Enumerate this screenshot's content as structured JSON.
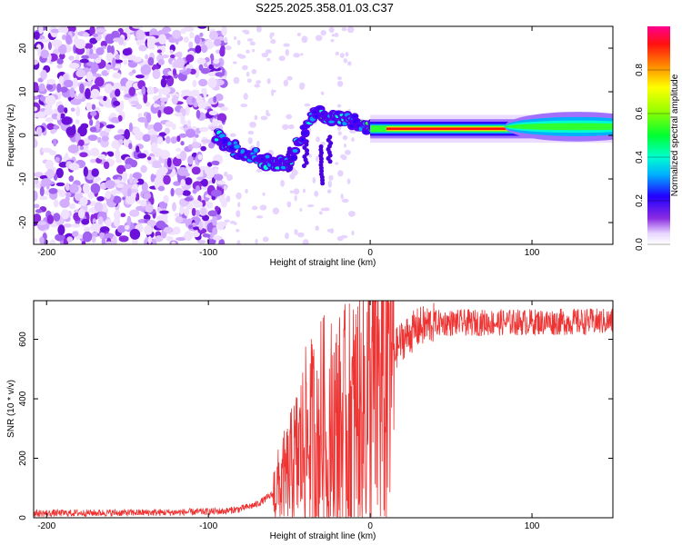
{
  "title": "S225.2025.358.01.03.C37",
  "chart_data": [
    {
      "type": "heatmap",
      "xlabel": "Height of straight line (km)",
      "ylabel": "Frequency (Hz)",
      "xlim": [
        -208,
        150
      ],
      "ylim": [
        -25,
        25
      ],
      "xticks": [
        -200,
        -100,
        0,
        100
      ],
      "yticks": [
        -20,
        -10,
        0,
        10,
        20
      ],
      "ridge": [
        {
          "x": -95,
          "y": 0
        },
        {
          "x": -85,
          "y": -3
        },
        {
          "x": -70,
          "y": -5
        },
        {
          "x": -60,
          "y": -7
        },
        {
          "x": -50,
          "y": -6
        },
        {
          "x": -45,
          "y": -2
        },
        {
          "x": -40,
          "y": 2
        },
        {
          "x": -35,
          "y": 5
        },
        {
          "x": -30,
          "y": 5
        },
        {
          "x": -25,
          "y": 4
        },
        {
          "x": -20,
          "y": 4
        },
        {
          "x": -10,
          "y": 3
        },
        {
          "x": 0,
          "y": 2
        },
        {
          "x": 10,
          "y": 1.5
        },
        {
          "x": 150,
          "y": 1.5
        }
      ],
      "colorbar": {
        "label": "Normalized spectral amplitude",
        "ticks": [
          "0.0",
          "0.2",
          "0.4",
          "0.6",
          "0.8"
        ],
        "range": [
          0,
          1
        ]
      }
    },
    {
      "type": "line",
      "xlabel": "Height of straight line (km)",
      "ylabel": "SNR (10 * v/v)",
      "xlim": [
        -208,
        150
      ],
      "ylim": [
        0,
        730
      ],
      "xticks": [
        -200,
        -100,
        0,
        100
      ],
      "yticks": [
        0,
        200,
        400,
        600
      ],
      "series": [
        {
          "name": "SNR",
          "color": "#ee3333",
          "envelope": [
            {
              "x": -208,
              "y": 15
            },
            {
              "x": -120,
              "y": 18
            },
            {
              "x": -90,
              "y": 22
            },
            {
              "x": -80,
              "y": 30
            },
            {
              "x": -70,
              "y": 45
            },
            {
              "x": -60,
              "y": 80
            },
            {
              "x": -50,
              "y": 150
            },
            {
              "x": -40,
              "y": 250
            },
            {
              "x": -30,
              "y": 300
            },
            {
              "x": -20,
              "y": 300
            },
            {
              "x": -10,
              "y": 330
            },
            {
              "x": 0,
              "y": 420
            },
            {
              "x": 10,
              "y": 520
            },
            {
              "x": 20,
              "y": 600
            },
            {
              "x": 30,
              "y": 640
            },
            {
              "x": 40,
              "y": 655
            },
            {
              "x": 150,
              "y": 660
            }
          ]
        }
      ]
    }
  ]
}
